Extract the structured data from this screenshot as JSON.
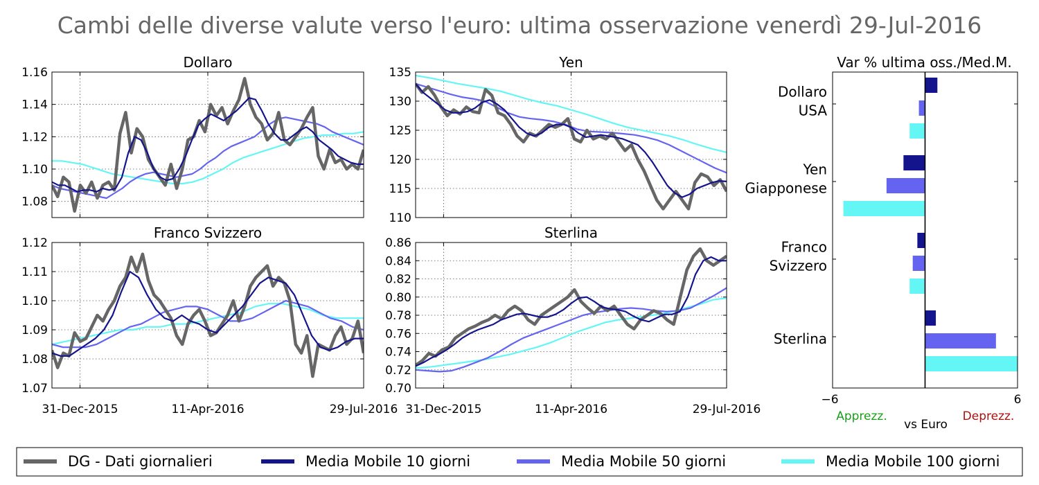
{
  "title": "Cambi delle diverse valute verso l'euro: ultima osservazione venerdì 29-Jul-2016",
  "colors": {
    "daily": "#666666",
    "ma10": "#14148c",
    "ma50": "#6464f0",
    "ma100": "#64f5f5",
    "apprezz": "#1a9e1a",
    "deprezz": "#aa1111"
  },
  "legend": [
    {
      "key": "daily",
      "label": "DG - Dati giornalieri"
    },
    {
      "key": "ma10",
      "label": "Media Mobile 10 giorni"
    },
    {
      "key": "ma50",
      "label": "Media Mobile 50 giorni"
    },
    {
      "key": "ma100",
      "label": "Media Mobile 100 giorni"
    }
  ],
  "chart_data": [
    {
      "type": "line",
      "title": "Dollaro",
      "x_ticks": [
        "31-Dec-2015",
        "11-Apr-2016",
        "29-Jul-2016"
      ],
      "ylim": [
        1.07,
        1.16
      ],
      "y_ticks": [
        "1.08",
        "1.10",
        "1.12",
        "1.14",
        "1.16"
      ],
      "grid": true,
      "series": {
        "daily": [
          1.09,
          1.083,
          1.095,
          1.092,
          1.074,
          1.09,
          1.085,
          1.092,
          1.082,
          1.09,
          1.092,
          1.087,
          1.122,
          1.135,
          1.11,
          1.125,
          1.12,
          1.106,
          1.1,
          1.095,
          1.09,
          1.103,
          1.088,
          1.1,
          1.118,
          1.12,
          1.13,
          1.123,
          1.14,
          1.133,
          1.138,
          1.128,
          1.136,
          1.143,
          1.156,
          1.14,
          1.132,
          1.128,
          1.118,
          1.122,
          1.135,
          1.118,
          1.115,
          1.12,
          1.125,
          1.132,
          1.138,
          1.108,
          1.1,
          1.112,
          1.104,
          1.106,
          1.1,
          1.103,
          1.1,
          1.112
        ],
        "ma10": [
          1.092,
          1.09,
          1.09,
          1.088,
          1.086,
          1.087,
          1.087,
          1.086,
          1.088,
          1.087,
          1.088,
          1.095,
          1.11,
          1.12,
          1.118,
          1.11,
          1.1,
          1.095,
          1.093,
          1.094,
          1.1,
          1.108,
          1.118,
          1.127,
          1.131,
          1.134,
          1.132,
          1.13,
          1.133,
          1.136,
          1.14,
          1.144,
          1.143,
          1.136,
          1.128,
          1.122,
          1.118,
          1.118,
          1.121,
          1.124,
          1.126,
          1.123,
          1.118,
          1.115,
          1.112,
          1.108,
          1.106,
          1.104,
          1.103,
          1.103
        ],
        "ma50": [
          1.09,
          1.088,
          1.087,
          1.086,
          1.085,
          1.084,
          1.083,
          1.082,
          1.085,
          1.088,
          1.092,
          1.095,
          1.097,
          1.098,
          1.097,
          1.096,
          1.095,
          1.096,
          1.097,
          1.1,
          1.104,
          1.107,
          1.111,
          1.114,
          1.116,
          1.118,
          1.12,
          1.124,
          1.128,
          1.131,
          1.132,
          1.131,
          1.13,
          1.129,
          1.128,
          1.126,
          1.123,
          1.121,
          1.119,
          1.117,
          1.115
        ],
        "ma100": [
          1.105,
          1.105,
          1.104,
          1.103,
          1.101,
          1.099,
          1.097,
          1.096,
          1.095,
          1.094,
          1.093,
          1.092,
          1.091,
          1.091,
          1.092,
          1.094,
          1.097,
          1.1,
          1.104,
          1.107,
          1.109,
          1.111,
          1.113,
          1.115,
          1.117,
          1.119,
          1.12,
          1.121,
          1.121,
          1.122,
          1.122,
          1.123
        ]
      }
    },
    {
      "type": "line",
      "title": "Yen",
      "x_ticks": [
        "31-Dec-2015",
        "11-Apr-2016",
        "29-Jul-2016"
      ],
      "ylim": [
        110,
        135
      ],
      "y_ticks": [
        "110",
        "115",
        "120",
        "125",
        "130",
        "135"
      ],
      "grid": true,
      "series": {
        "daily": [
          133,
          131.5,
          132.5,
          131,
          129,
          127.5,
          128.5,
          127.8,
          129,
          128.2,
          128,
          132,
          131,
          128,
          127.5,
          126,
          124,
          123,
          124.5,
          124,
          125,
          126,
          125.5,
          126,
          127,
          123.5,
          123,
          125,
          123.5,
          124,
          123.5,
          124.5,
          123,
          121.5,
          122.5,
          120,
          118,
          115.5,
          113,
          111.5,
          113,
          114.5,
          113,
          111.5,
          116,
          117.5,
          117,
          115.5,
          116.5,
          114.5
        ],
        "ma10": [
          133,
          131.5,
          130.5,
          129.5,
          128.5,
          128,
          128,
          128.2,
          128.8,
          129.8,
          130.2,
          129.5,
          128.5,
          127,
          125.5,
          124.5,
          124,
          124.5,
          125.5,
          126,
          126,
          125.5,
          124.5,
          123.8,
          124,
          124.2,
          124,
          123.8,
          123.5,
          123,
          122.5,
          121.2,
          119.5,
          117.5,
          115.5,
          114.2,
          113.5,
          114,
          115,
          115.5,
          116,
          116.3,
          116.2
        ],
        "ma50": [
          133,
          132.4,
          131.8,
          131.2,
          130.7,
          130.4,
          130,
          129,
          128,
          127.3,
          127,
          126.8,
          126.5,
          126,
          125.2,
          124.8,
          124.7,
          124.6,
          124.4,
          124.2,
          123.8,
          123.3,
          122.5,
          121.5,
          120.5,
          119.5,
          118.5,
          117.7
        ],
        "ma100": [
          134.4,
          134,
          133.5,
          133,
          132.6,
          132.2,
          131.7,
          131,
          130.3,
          129.7,
          129.2,
          128.5,
          127.8,
          127,
          126.2,
          125.5,
          125,
          124.5,
          124,
          123.3,
          122.5,
          121.8,
          121.2
        ]
      }
    },
    {
      "type": "line",
      "title": "Franco Svizzero",
      "x_ticks": [
        "31-Dec-2015",
        "11-Apr-2016",
        "29-Jul-2016"
      ],
      "ylim": [
        1.07,
        1.12
      ],
      "y_ticks": [
        "1.07",
        "1.08",
        "1.09",
        "1.10",
        "1.11",
        "1.12"
      ],
      "grid": true,
      "series": {
        "daily": [
          1.083,
          1.077,
          1.082,
          1.081,
          1.089,
          1.086,
          1.087,
          1.091,
          1.095,
          1.093,
          1.097,
          1.1,
          1.105,
          1.108,
          1.115,
          1.11,
          1.116,
          1.107,
          1.102,
          1.1,
          1.097,
          1.094,
          1.088,
          1.085,
          1.092,
          1.095,
          1.097,
          1.093,
          1.088,
          1.089,
          1.092,
          1.095,
          1.1,
          1.093,
          1.098,
          1.105,
          1.108,
          1.11,
          1.112,
          1.105,
          1.108,
          1.106,
          1.1,
          1.085,
          1.082,
          1.088,
          1.074,
          1.085,
          1.084,
          1.083,
          1.088,
          1.091,
          1.085,
          1.087,
          1.093,
          1.082
        ],
        "ma10": [
          1.082,
          1.081,
          1.081,
          1.083,
          1.085,
          1.087,
          1.09,
          1.095,
          1.103,
          1.11,
          1.108,
          1.102,
          1.097,
          1.094,
          1.093,
          1.095,
          1.093,
          1.092,
          1.09,
          1.089,
          1.092,
          1.095,
          1.098,
          1.102,
          1.106,
          1.108,
          1.107,
          1.106,
          1.102,
          1.095,
          1.088,
          1.084,
          1.083,
          1.084,
          1.086,
          1.087,
          1.087
        ],
        "ma50": [
          1.085,
          1.084,
          1.084,
          1.084,
          1.085,
          1.087,
          1.089,
          1.091,
          1.092,
          1.094,
          1.096,
          1.097,
          1.098,
          1.098,
          1.097,
          1.095,
          1.093,
          1.093,
          1.094,
          1.096,
          1.098,
          1.1,
          1.099,
          1.098,
          1.096,
          1.094,
          1.093,
          1.091,
          1.09
        ],
        "ma100": [
          1.085,
          1.086,
          1.087,
          1.088,
          1.089,
          1.09,
          1.09,
          1.091,
          1.091,
          1.092,
          1.092,
          1.093,
          1.094,
          1.095,
          1.096,
          1.098,
          1.099,
          1.099,
          1.098,
          1.097,
          1.095,
          1.094,
          1.094,
          1.094
        ]
      }
    },
    {
      "type": "line",
      "title": "Sterlina",
      "x_ticks": [
        "31-Dec-2015",
        "11-Apr-2016",
        "29-Jul-2016"
      ],
      "ylim": [
        0.7,
        0.86
      ],
      "y_ticks": [
        "0.70",
        "0.72",
        "0.74",
        "0.76",
        "0.78",
        "0.80",
        "0.82",
        "0.84",
        "0.86"
      ],
      "grid": true,
      "series": {
        "daily": [
          0.725,
          0.73,
          0.738,
          0.735,
          0.742,
          0.745,
          0.755,
          0.76,
          0.765,
          0.768,
          0.772,
          0.775,
          0.78,
          0.776,
          0.785,
          0.79,
          0.785,
          0.775,
          0.77,
          0.78,
          0.785,
          0.79,
          0.795,
          0.8,
          0.808,
          0.795,
          0.788,
          0.782,
          0.79,
          0.785,
          0.79,
          0.78,
          0.77,
          0.765,
          0.775,
          0.78,
          0.785,
          0.782,
          0.775,
          0.77,
          0.8,
          0.83,
          0.845,
          0.853,
          0.84,
          0.835,
          0.84,
          0.845
        ],
        "ma10": [
          0.724,
          0.728,
          0.733,
          0.737,
          0.742,
          0.748,
          0.755,
          0.76,
          0.764,
          0.767,
          0.77,
          0.775,
          0.778,
          0.781,
          0.782,
          0.78,
          0.778,
          0.778,
          0.781,
          0.786,
          0.793,
          0.799,
          0.8,
          0.795,
          0.789,
          0.787,
          0.786,
          0.784,
          0.779,
          0.775,
          0.773,
          0.777,
          0.781,
          0.781,
          0.784,
          0.8,
          0.825,
          0.84,
          0.844,
          0.84,
          0.84
        ],
        "ma50": [
          0.72,
          0.719,
          0.718,
          0.719,
          0.723,
          0.728,
          0.733,
          0.74,
          0.748,
          0.755,
          0.76,
          0.765,
          0.77,
          0.775,
          0.78,
          0.783,
          0.785,
          0.787,
          0.788,
          0.787,
          0.785,
          0.784,
          0.785,
          0.788,
          0.795,
          0.802,
          0.81
        ],
        "ma100": [
          0.722,
          0.723,
          0.725,
          0.727,
          0.729,
          0.731,
          0.734,
          0.737,
          0.741,
          0.745,
          0.75,
          0.756,
          0.762,
          0.767,
          0.772,
          0.775,
          0.777,
          0.779,
          0.781,
          0.784,
          0.788,
          0.792,
          0.797,
          0.799
        ]
      }
    },
    {
      "type": "bar",
      "title": "Var % ultima oss./Med.M.",
      "orientation": "horizontal",
      "xlim": [
        -6,
        6
      ],
      "x_ticks": [
        "−6",
        "6"
      ],
      "xlabel": "vs Euro",
      "left_note": "Apprezz.",
      "right_note": "Deprezz.",
      "groups": [
        {
          "label_lines": [
            "Dollaro",
            "USA"
          ],
          "values": [
            0.8,
            -0.4,
            -1.0
          ]
        },
        {
          "label_lines": [
            "Yen",
            "Giapponese"
          ],
          "values": [
            -1.4,
            -2.5,
            -5.3
          ]
        },
        {
          "label_lines": [
            "Franco",
            "Svizzero"
          ],
          "values": [
            -0.5,
            -0.8,
            -1.0
          ]
        },
        {
          "label_lines": [
            "Sterlina"
          ],
          "values": [
            0.7,
            4.6,
            6.0
          ]
        }
      ],
      "series_keys": [
        "ma10",
        "ma50",
        "ma100"
      ]
    }
  ]
}
